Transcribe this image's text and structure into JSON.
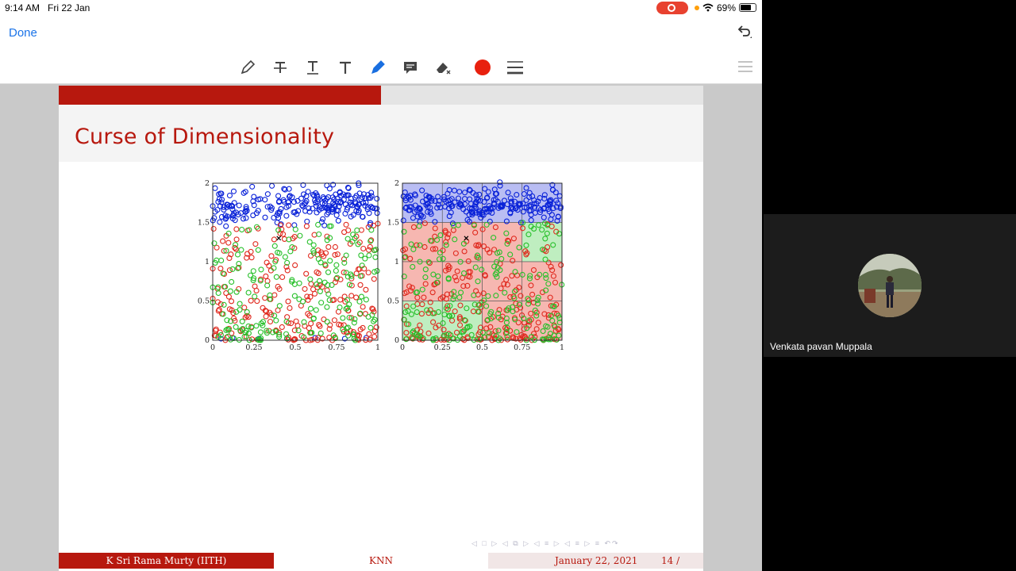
{
  "status_bar": {
    "time": "9:14 AM",
    "date": "Fri 22 Jan",
    "battery": "69%"
  },
  "toolbar": {
    "done_label": "Done",
    "tools": [
      "pencil-icon",
      "strikethrough-text-icon",
      "underline-text-icon",
      "text-icon",
      "highlighter-icon",
      "comment-icon",
      "eraser-icon",
      "color-picker",
      "line-width-icon"
    ],
    "active_tool": "highlighter-icon",
    "pen_color": "#e8200e"
  },
  "slide": {
    "title": "Curse of Dimensionality",
    "accent_color": "#b7180e",
    "footer": {
      "author": "K Sri Rama Murty  (IITH)",
      "topic": "KNN",
      "date": "January 22, 2021",
      "page": "14 /"
    }
  },
  "chart_data": [
    {
      "type": "scatter",
      "title": "",
      "x_ticks": [
        "0",
        "0.25",
        "0.5",
        "0.75",
        "1"
      ],
      "y_ticks": [
        "0",
        "0.5",
        "1",
        "1.5",
        "2"
      ],
      "xlim": [
        0,
        1
      ],
      "ylim": [
        0,
        2
      ],
      "series": [
        {
          "color": "#0a22d8",
          "cluster": {
            "x": [
              0,
              1
            ],
            "y": [
              1.55,
              1.9
            ],
            "n": 230
          },
          "bottom_points": [
            [
              0.05,
              0.02
            ],
            [
              0.12,
              0.03
            ],
            [
              0.28,
              0.02
            ],
            [
              0.45,
              0.02
            ],
            [
              0.62,
              0.03
            ],
            [
              0.8,
              0.02
            ],
            [
              0.93,
              0.03
            ]
          ]
        },
        {
          "color": "#e0291e",
          "region": {
            "x": [
              0,
              1
            ],
            "y": [
              0,
              1.5
            ]
          },
          "n": 240
        },
        {
          "color": "#27c02a",
          "region": {
            "x": [
              0,
              1
            ],
            "y": [
              0,
              1.5
            ]
          },
          "n": 200
        }
      ],
      "marker": {
        "x": 0.4,
        "y": 1.3
      }
    },
    {
      "type": "scatter",
      "title": "",
      "x_ticks": [
        "0",
        "0.25",
        "0.5",
        "0.75",
        "1"
      ],
      "y_ticks": [
        "0",
        "0.5",
        "1",
        "1.5",
        "2"
      ],
      "xlim": [
        0,
        1
      ],
      "ylim": [
        0,
        2
      ],
      "grid_cells": {
        "x_edges": [
          0,
          0.25,
          0.5,
          0.75,
          1
        ],
        "y_edges": [
          0,
          0.5,
          1,
          1.5,
          2
        ],
        "colors_top_row_first": [
          [
            "blue",
            "blue",
            "blue",
            "blue"
          ],
          [
            "red",
            "red",
            "red",
            "green"
          ],
          [
            "red",
            "red",
            "red",
            "red"
          ],
          [
            "green",
            "green",
            "red",
            "red"
          ]
        ]
      },
      "series": [
        {
          "color": "#0a22d8",
          "cluster": {
            "x": [
              0,
              1
            ],
            "y": [
              1.55,
              1.9
            ],
            "n": 230
          }
        },
        {
          "color": "#e0291e",
          "region": {
            "x": [
              0,
              1
            ],
            "y": [
              0,
              1.5
            ]
          },
          "n": 240
        },
        {
          "color": "#27c02a",
          "region": {
            "x": [
              0,
              1
            ],
            "y": [
              0,
              1.5
            ]
          },
          "n": 200
        }
      ],
      "marker": {
        "x": 0.4,
        "y": 1.3
      }
    }
  ],
  "video": {
    "participant_name": "Venkata pavan Muppala"
  }
}
